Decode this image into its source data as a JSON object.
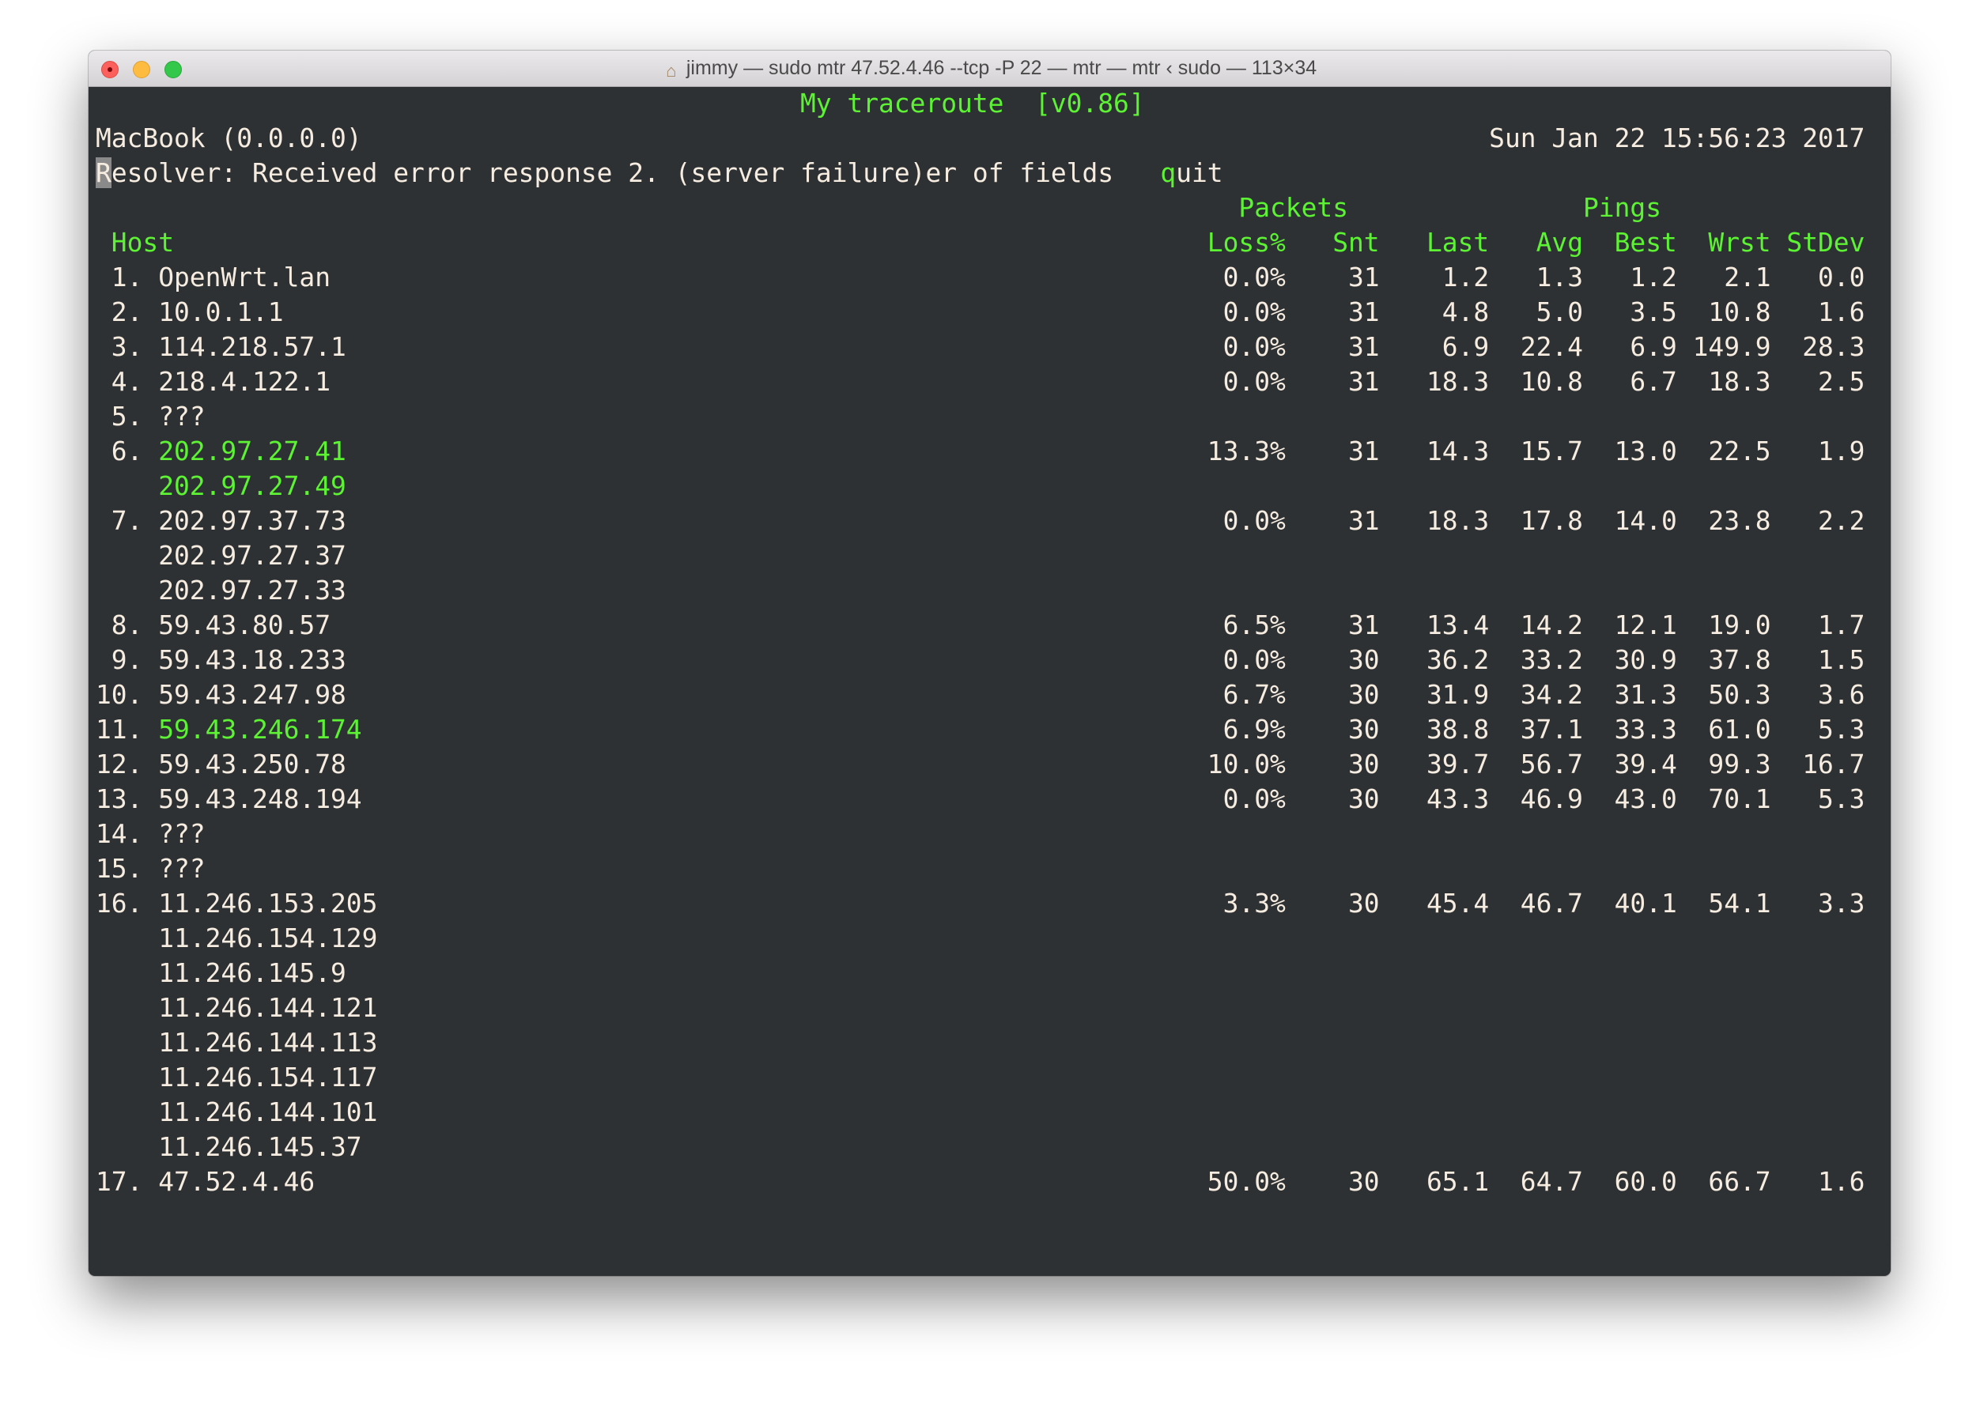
{
  "window": {
    "title": "jimmy — sudo mtr 47.52.4.46 --tcp -P 22 — mtr — mtr ‹ sudo — 113×34",
    "title_icon": "home-icon"
  },
  "colors": {
    "background": "#2e3134",
    "text": "#f6ece0",
    "accent": "#5df233"
  },
  "mtr": {
    "title": "My traceroute  [v0.86]",
    "local_host": "MacBook (0.0.0.0)",
    "datetime": "Sun Jan 22 15:56:23 2017",
    "status_first": "R",
    "status_rest": "esolver: Received error response 2. (server failure)er of fields",
    "quit_key": "q",
    "quit_rest": "uit",
    "group_packets": "Packets",
    "group_pings": "Pings",
    "headers": {
      "host": "Host",
      "loss": "Loss%",
      "snt": "Snt",
      "last": "Last",
      "avg": "Avg",
      "best": "Best",
      "wrst": "Wrst",
      "stdev": "StDev"
    },
    "hops": [
      {
        "num": "1.",
        "hosts": [
          "OpenWrt.lan"
        ],
        "highlight": false,
        "loss": "0.0%",
        "snt": "31",
        "last": "1.2",
        "avg": "1.3",
        "best": "1.2",
        "wrst": "2.1",
        "stdev": "0.0"
      },
      {
        "num": "2.",
        "hosts": [
          "10.0.1.1"
        ],
        "highlight": false,
        "loss": "0.0%",
        "snt": "31",
        "last": "4.8",
        "avg": "5.0",
        "best": "3.5",
        "wrst": "10.8",
        "stdev": "1.6"
      },
      {
        "num": "3.",
        "hosts": [
          "114.218.57.1"
        ],
        "highlight": false,
        "loss": "0.0%",
        "snt": "31",
        "last": "6.9",
        "avg": "22.4",
        "best": "6.9",
        "wrst": "149.9",
        "stdev": "28.3"
      },
      {
        "num": "4.",
        "hosts": [
          "218.4.122.1"
        ],
        "highlight": false,
        "loss": "0.0%",
        "snt": "31",
        "last": "18.3",
        "avg": "10.8",
        "best": "6.7",
        "wrst": "18.3",
        "stdev": "2.5"
      },
      {
        "num": "5.",
        "hosts": [
          "???"
        ],
        "highlight": false
      },
      {
        "num": "6.",
        "hosts": [
          "202.97.27.41",
          "202.97.27.49"
        ],
        "highlight": true,
        "loss": "13.3%",
        "snt": "31",
        "last": "14.3",
        "avg": "15.7",
        "best": "13.0",
        "wrst": "22.5",
        "stdev": "1.9"
      },
      {
        "num": "7.",
        "hosts": [
          "202.97.37.73",
          "202.97.27.37",
          "202.97.27.33"
        ],
        "highlight": false,
        "loss": "0.0%",
        "snt": "31",
        "last": "18.3",
        "avg": "17.8",
        "best": "14.0",
        "wrst": "23.8",
        "stdev": "2.2"
      },
      {
        "num": "8.",
        "hosts": [
          "59.43.80.57"
        ],
        "highlight": false,
        "loss": "6.5%",
        "snt": "31",
        "last": "13.4",
        "avg": "14.2",
        "best": "12.1",
        "wrst": "19.0",
        "stdev": "1.7"
      },
      {
        "num": "9.",
        "hosts": [
          "59.43.18.233"
        ],
        "highlight": false,
        "loss": "0.0%",
        "snt": "30",
        "last": "36.2",
        "avg": "33.2",
        "best": "30.9",
        "wrst": "37.8",
        "stdev": "1.5"
      },
      {
        "num": "10.",
        "hosts": [
          "59.43.247.98"
        ],
        "highlight": false,
        "loss": "6.7%",
        "snt": "30",
        "last": "31.9",
        "avg": "34.2",
        "best": "31.3",
        "wrst": "50.3",
        "stdev": "3.6"
      },
      {
        "num": "11.",
        "hosts": [
          "59.43.246.174"
        ],
        "highlight": true,
        "loss": "6.9%",
        "snt": "30",
        "last": "38.8",
        "avg": "37.1",
        "best": "33.3",
        "wrst": "61.0",
        "stdev": "5.3"
      },
      {
        "num": "12.",
        "hosts": [
          "59.43.250.78"
        ],
        "highlight": false,
        "loss": "10.0%",
        "snt": "30",
        "last": "39.7",
        "avg": "56.7",
        "best": "39.4",
        "wrst": "99.3",
        "stdev": "16.7"
      },
      {
        "num": "13.",
        "hosts": [
          "59.43.248.194"
        ],
        "highlight": false,
        "loss": "0.0%",
        "snt": "30",
        "last": "43.3",
        "avg": "46.9",
        "best": "43.0",
        "wrst": "70.1",
        "stdev": "5.3"
      },
      {
        "num": "14.",
        "hosts": [
          "???"
        ],
        "highlight": false
      },
      {
        "num": "15.",
        "hosts": [
          "???"
        ],
        "highlight": false
      },
      {
        "num": "16.",
        "hosts": [
          "11.246.153.205",
          "11.246.154.129",
          "11.246.145.9",
          "11.246.144.121",
          "11.246.144.113",
          "11.246.154.117",
          "11.246.144.101",
          "11.246.145.37"
        ],
        "highlight": false,
        "loss": "3.3%",
        "snt": "30",
        "last": "45.4",
        "avg": "46.7",
        "best": "40.1",
        "wrst": "54.1",
        "stdev": "3.3"
      },
      {
        "num": "17.",
        "hosts": [
          "47.52.4.46"
        ],
        "highlight": false,
        "loss": "50.0%",
        "snt": "30",
        "last": "65.1",
        "avg": "64.7",
        "best": "60.0",
        "wrst": "66.7",
        "stdev": "1.6"
      }
    ]
  }
}
